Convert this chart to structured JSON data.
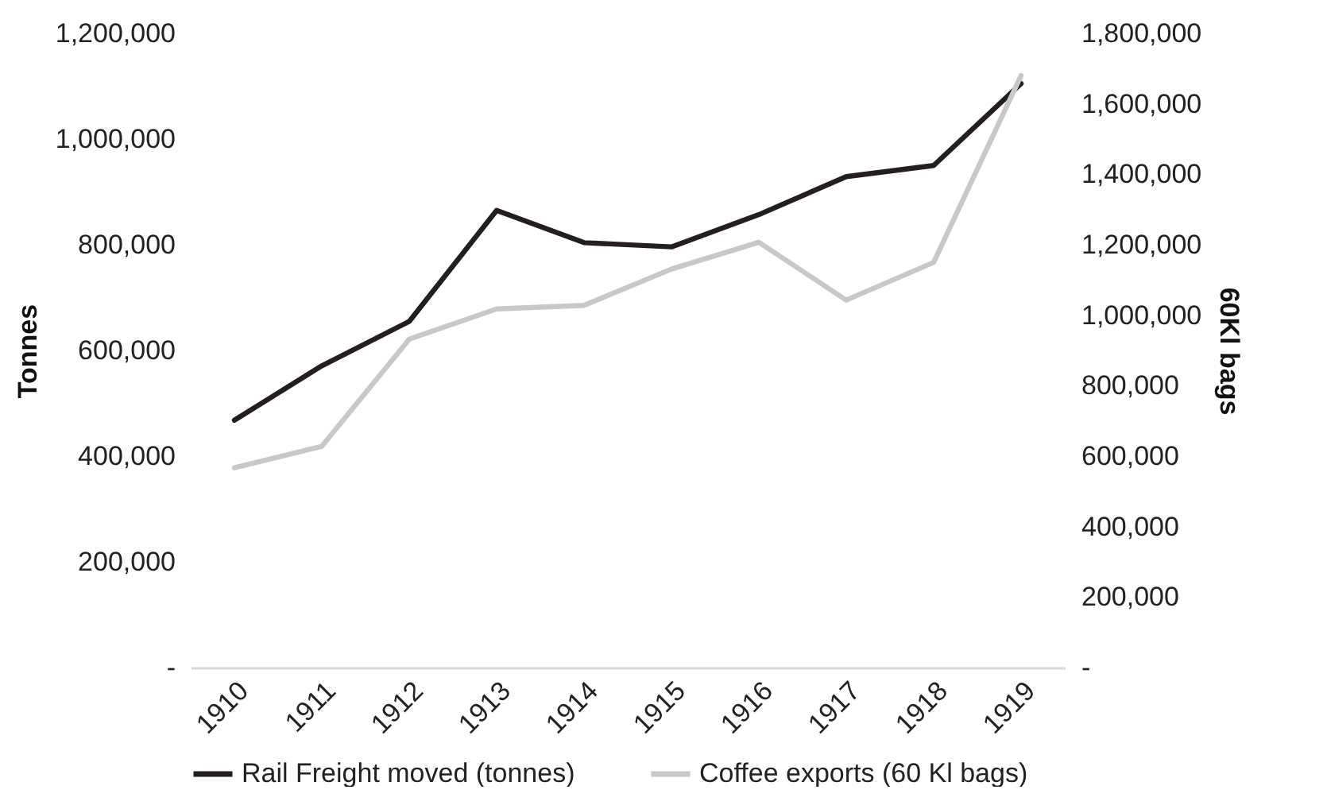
{
  "chart_data": {
    "type": "line",
    "categories": [
      "1910",
      "1911",
      "1912",
      "1913",
      "1914",
      "1915",
      "1916",
      "1917",
      "1918",
      "1919"
    ],
    "series": [
      {
        "name": "Rail Freight moved (tonnes)",
        "color": "#231f20",
        "values": [
          468000,
          571000,
          655000,
          865000,
          804000,
          796000,
          857000,
          929000,
          950000,
          1105000
        ]
      },
      {
        "name": "Coffee exports (60 Kl bags)",
        "color": "#c8c8c8",
        "axis": "y2",
        "values": [
          567000,
          628000,
          932000,
          1018000,
          1028000,
          1131000,
          1207000,
          1043000,
          1150000,
          1680000
        ]
      }
    ],
    "ylabel": "Tonnes",
    "y2label": "60Kl bags",
    "ylim": [
      0,
      1200000
    ],
    "yticks": [
      {
        "value": 0,
        "label": "-"
      },
      {
        "value": 200000,
        "label": "200,000"
      },
      {
        "value": 400000,
        "label": "400,000"
      },
      {
        "value": 600000,
        "label": "600,000"
      },
      {
        "value": 800000,
        "label": "800,000"
      },
      {
        "value": 1000000,
        "label": "1,000,000"
      },
      {
        "value": 1200000,
        "label": "1,200,000"
      }
    ],
    "y2lim": [
      0,
      1800000
    ],
    "y2ticks": [
      {
        "value": 0,
        "label": "-"
      },
      {
        "value": 200000,
        "label": "200,000"
      },
      {
        "value": 400000,
        "label": "400,000"
      },
      {
        "value": 600000,
        "label": "600,000"
      },
      {
        "value": 800000,
        "label": "800,000"
      },
      {
        "value": 1000000,
        "label": "1,000,000"
      },
      {
        "value": 1200000,
        "label": "1,200,000"
      },
      {
        "value": 1400000,
        "label": "1,400,000"
      },
      {
        "value": 1600000,
        "label": "1,600,000"
      },
      {
        "value": 1800000,
        "label": "1,800,000"
      }
    ],
    "grid": false,
    "legend": "bottom",
    "line_style": "solid",
    "marker": "none"
  }
}
